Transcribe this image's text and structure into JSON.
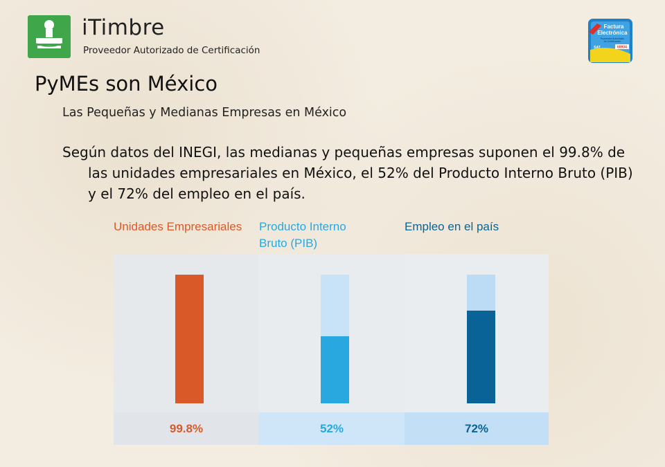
{
  "header": {
    "brand_name": "iTimbre",
    "brand_tagline": "Proveedor Autorizado de Certificación",
    "badge": {
      "line1": "Factura",
      "line2": "Electrónica",
      "line3": "Proveedor Autorizado",
      "line4": "de Certificación",
      "org": "SAT",
      "number": "68934"
    }
  },
  "slide": {
    "title": "PyMEs son México",
    "subtitle": "Las Pequeñas y Medianas Empresas en México",
    "body": "Según datos del INEGI, las medianas y pequeñas empresas suponen el 99.8% de las unidades empresariales en México, el 52% del Producto Interno Bruto (PIB) y el 72% del empleo en el país."
  },
  "chart_data": {
    "type": "bar",
    "categories": [
      "Unidades Empresariales",
      "Producto Interno Bruto (PIB)",
      "Empleo en el país"
    ],
    "values": [
      99.8,
      52,
      72
    ],
    "value_labels": [
      "99.8%",
      "52%",
      "72%"
    ],
    "ylim": [
      0,
      100
    ],
    "colors": {
      "unidades": "#d95a28",
      "pib": "#29a8e0",
      "empleo": "#0a6396",
      "pib_track": "#c8e2f7",
      "empleo_track": "#bcdbf5"
    }
  }
}
